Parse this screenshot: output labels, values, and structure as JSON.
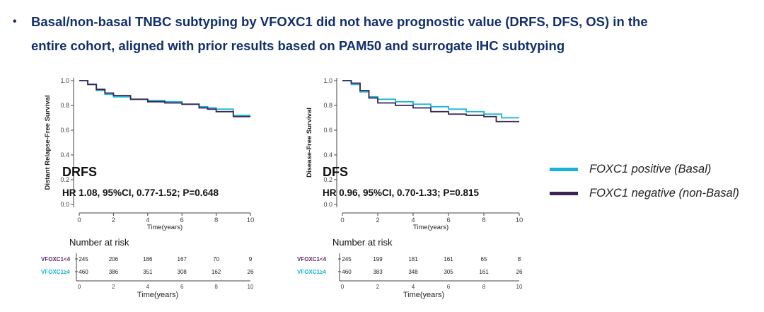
{
  "headline": {
    "bullet": "•",
    "line1": "Basal/non-basal TNBC subtyping by VFOXC1 did not have prognostic value (DRFS, DFS, OS) in the",
    "line2": "entire cohort, aligned with prior results based on PAM50 and surrogate IHC subtyping"
  },
  "colors": {
    "positive": "#1ab3d8",
    "negative": "#3a2553",
    "headline": "#13306b",
    "group1_label": "#5b2c6f",
    "group2_label": "#1ab3d8"
  },
  "legend": [
    {
      "label": "FOXC1 positive (Basal)",
      "color_key": "positive"
    },
    {
      "label": "FOXC1 negative (non-Basal)",
      "color_key": "negative"
    }
  ],
  "chart_data": [
    {
      "type": "line",
      "title": "DRFS",
      "annotation": "HR 1.08, 95%CI, 0.77-1.52; P=0.648",
      "xlabel": "Time(years)",
      "ylabel": "Distant Relapse-Free Survival",
      "xlim": [
        0,
        10
      ],
      "ylim": [
        0,
        1.0
      ],
      "xticks": [
        "0",
        "2",
        "4",
        "6",
        "8",
        "10"
      ],
      "yticks": [
        "0.0",
        "0.2",
        "0.4",
        "0.6",
        "0.8",
        "1.0"
      ],
      "series": [
        {
          "color_key": "positive",
          "x": [
            0,
            0.5,
            1,
            1.5,
            2,
            3,
            4,
            5,
            6,
            7,
            7.5,
            8,
            9,
            10
          ],
          "y": [
            1.0,
            0.97,
            0.92,
            0.89,
            0.87,
            0.85,
            0.84,
            0.83,
            0.81,
            0.79,
            0.78,
            0.77,
            0.72,
            0.72
          ]
        },
        {
          "color_key": "negative",
          "x": [
            0,
            0.5,
            1,
            1.5,
            2,
            3,
            4,
            5,
            6,
            7,
            7.5,
            8,
            9,
            10
          ],
          "y": [
            1.0,
            0.97,
            0.93,
            0.9,
            0.88,
            0.85,
            0.83,
            0.82,
            0.81,
            0.78,
            0.77,
            0.75,
            0.71,
            0.71
          ]
        }
      ],
      "risk_table": {
        "header": "Number at risk",
        "time_points": [
          0,
          2,
          4,
          6,
          8,
          10
        ],
        "rows": [
          {
            "label": "VFOXC1<4",
            "color_key": "group1_label",
            "values": [
              "245",
              "206",
              "186",
              "167",
              "70",
              "9"
            ]
          },
          {
            "label": "VFOXC1≥4",
            "color_key": "group2_label",
            "values": [
              "460",
              "386",
              "351",
              "308",
              "162",
              "26"
            ]
          }
        ],
        "xticks": [
          "0",
          "2",
          "4",
          "6",
          "8",
          "10"
        ],
        "xlabel": "Time(years)"
      }
    },
    {
      "type": "line",
      "title": "DFS",
      "annotation": "HR 0.96, 95%CI, 0.70-1.33; P=0.815",
      "xlabel": "Time(years)",
      "ylabel": "Disease-Free Survival",
      "xlim": [
        0,
        10
      ],
      "ylim": [
        0,
        1.0
      ],
      "xticks": [
        "0",
        "2",
        "4",
        "6",
        "8",
        "10"
      ],
      "yticks": [
        "0.0",
        "0.2",
        "0.4",
        "0.6",
        "0.8",
        "1.0"
      ],
      "series": [
        {
          "color_key": "positive",
          "x": [
            0,
            0.5,
            1,
            1.5,
            2,
            3,
            4,
            5,
            6,
            7,
            8,
            9,
            10
          ],
          "y": [
            1.0,
            0.97,
            0.91,
            0.87,
            0.85,
            0.83,
            0.81,
            0.79,
            0.77,
            0.75,
            0.73,
            0.7,
            0.7
          ]
        },
        {
          "color_key": "negative",
          "x": [
            0,
            0.5,
            1,
            1.5,
            2,
            3,
            4,
            5,
            6,
            7,
            8,
            8.7,
            9,
            10
          ],
          "y": [
            1.0,
            0.98,
            0.92,
            0.86,
            0.82,
            0.8,
            0.78,
            0.75,
            0.73,
            0.72,
            0.71,
            0.67,
            0.67,
            0.67
          ]
        }
      ],
      "risk_table": {
        "header": "Number at risk",
        "time_points": [
          0,
          2,
          4,
          6,
          8,
          10
        ],
        "rows": [
          {
            "label": "VFOXC1<4",
            "color_key": "group1_label",
            "values": [
              "245",
              "199",
              "181",
              "161",
              "65",
              "8"
            ]
          },
          {
            "label": "VFOXC1≥4",
            "color_key": "group2_label",
            "values": [
              "460",
              "383",
              "348",
              "305",
              "161",
              "26"
            ]
          }
        ],
        "xticks": [
          "0",
          "2",
          "4",
          "6",
          "8",
          "10"
        ],
        "xlabel": "Time(years)"
      }
    }
  ]
}
